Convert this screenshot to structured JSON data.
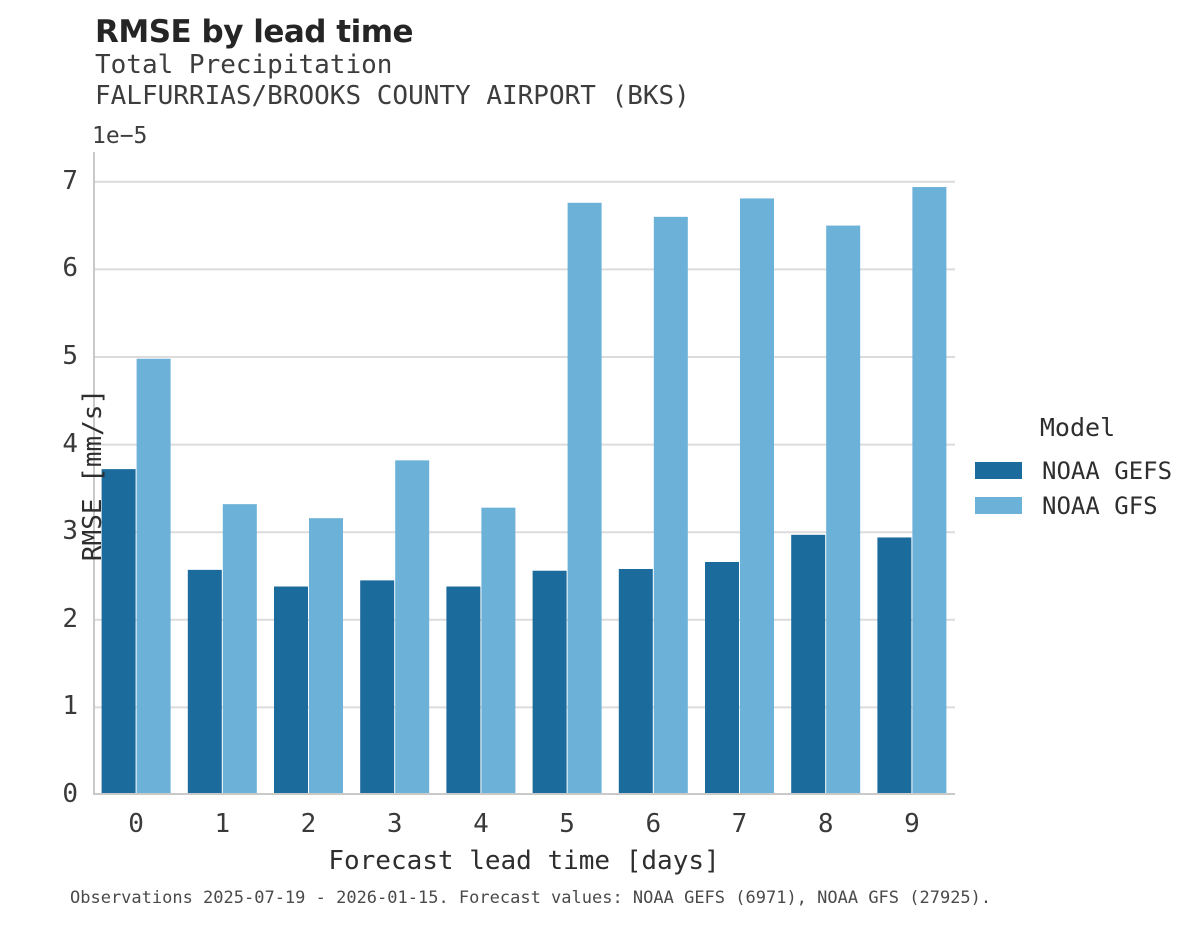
{
  "page": {
    "title": "RMSE by lead time",
    "subtitle_variable": "Total Precipitation",
    "subtitle_station": "FALFURRIAS/BROOKS COUNTY AIRPORT (BKS)",
    "footer": "Observations 2025-07-19 - 2026-01-15. Forecast values: NOAA GEFS (6971), NOAA GFS (27925)."
  },
  "chart_data": {
    "type": "bar",
    "title": "RMSE by lead time",
    "subtitle": [
      "Total Precipitation",
      "FALFURRIAS/BROOKS COUNTY AIRPORT (BKS)"
    ],
    "categories": [
      "0",
      "1",
      "2",
      "3",
      "4",
      "5",
      "6",
      "7",
      "8",
      "9"
    ],
    "series": [
      {
        "name": "NOAA GEFS",
        "color": "#1c6b9d",
        "values": [
          3.72,
          2.57,
          2.38,
          2.45,
          2.38,
          2.56,
          2.58,
          2.66,
          2.97,
          2.94
        ]
      },
      {
        "name": "NOAA GFS",
        "color": "#6bb1d8",
        "values": [
          4.98,
          3.32,
          3.16,
          3.82,
          3.28,
          6.76,
          6.6,
          6.81,
          6.5,
          6.94
        ]
      }
    ],
    "value_scale_note": "values are in units of 1e-5 mm/s",
    "offset_label": "1e−5",
    "xlabel": "Forecast lead time [days]",
    "ylabel": "RMSE [mm/s]",
    "yticks": [
      0,
      1,
      2,
      3,
      4,
      5,
      6,
      7
    ],
    "ylim": [
      0,
      7.34
    ],
    "grid": "horizontal",
    "grid_color": "#dcdcdc",
    "spine_color": "#c9c9c9",
    "legend": {
      "title": "Model",
      "position": "right"
    }
  }
}
